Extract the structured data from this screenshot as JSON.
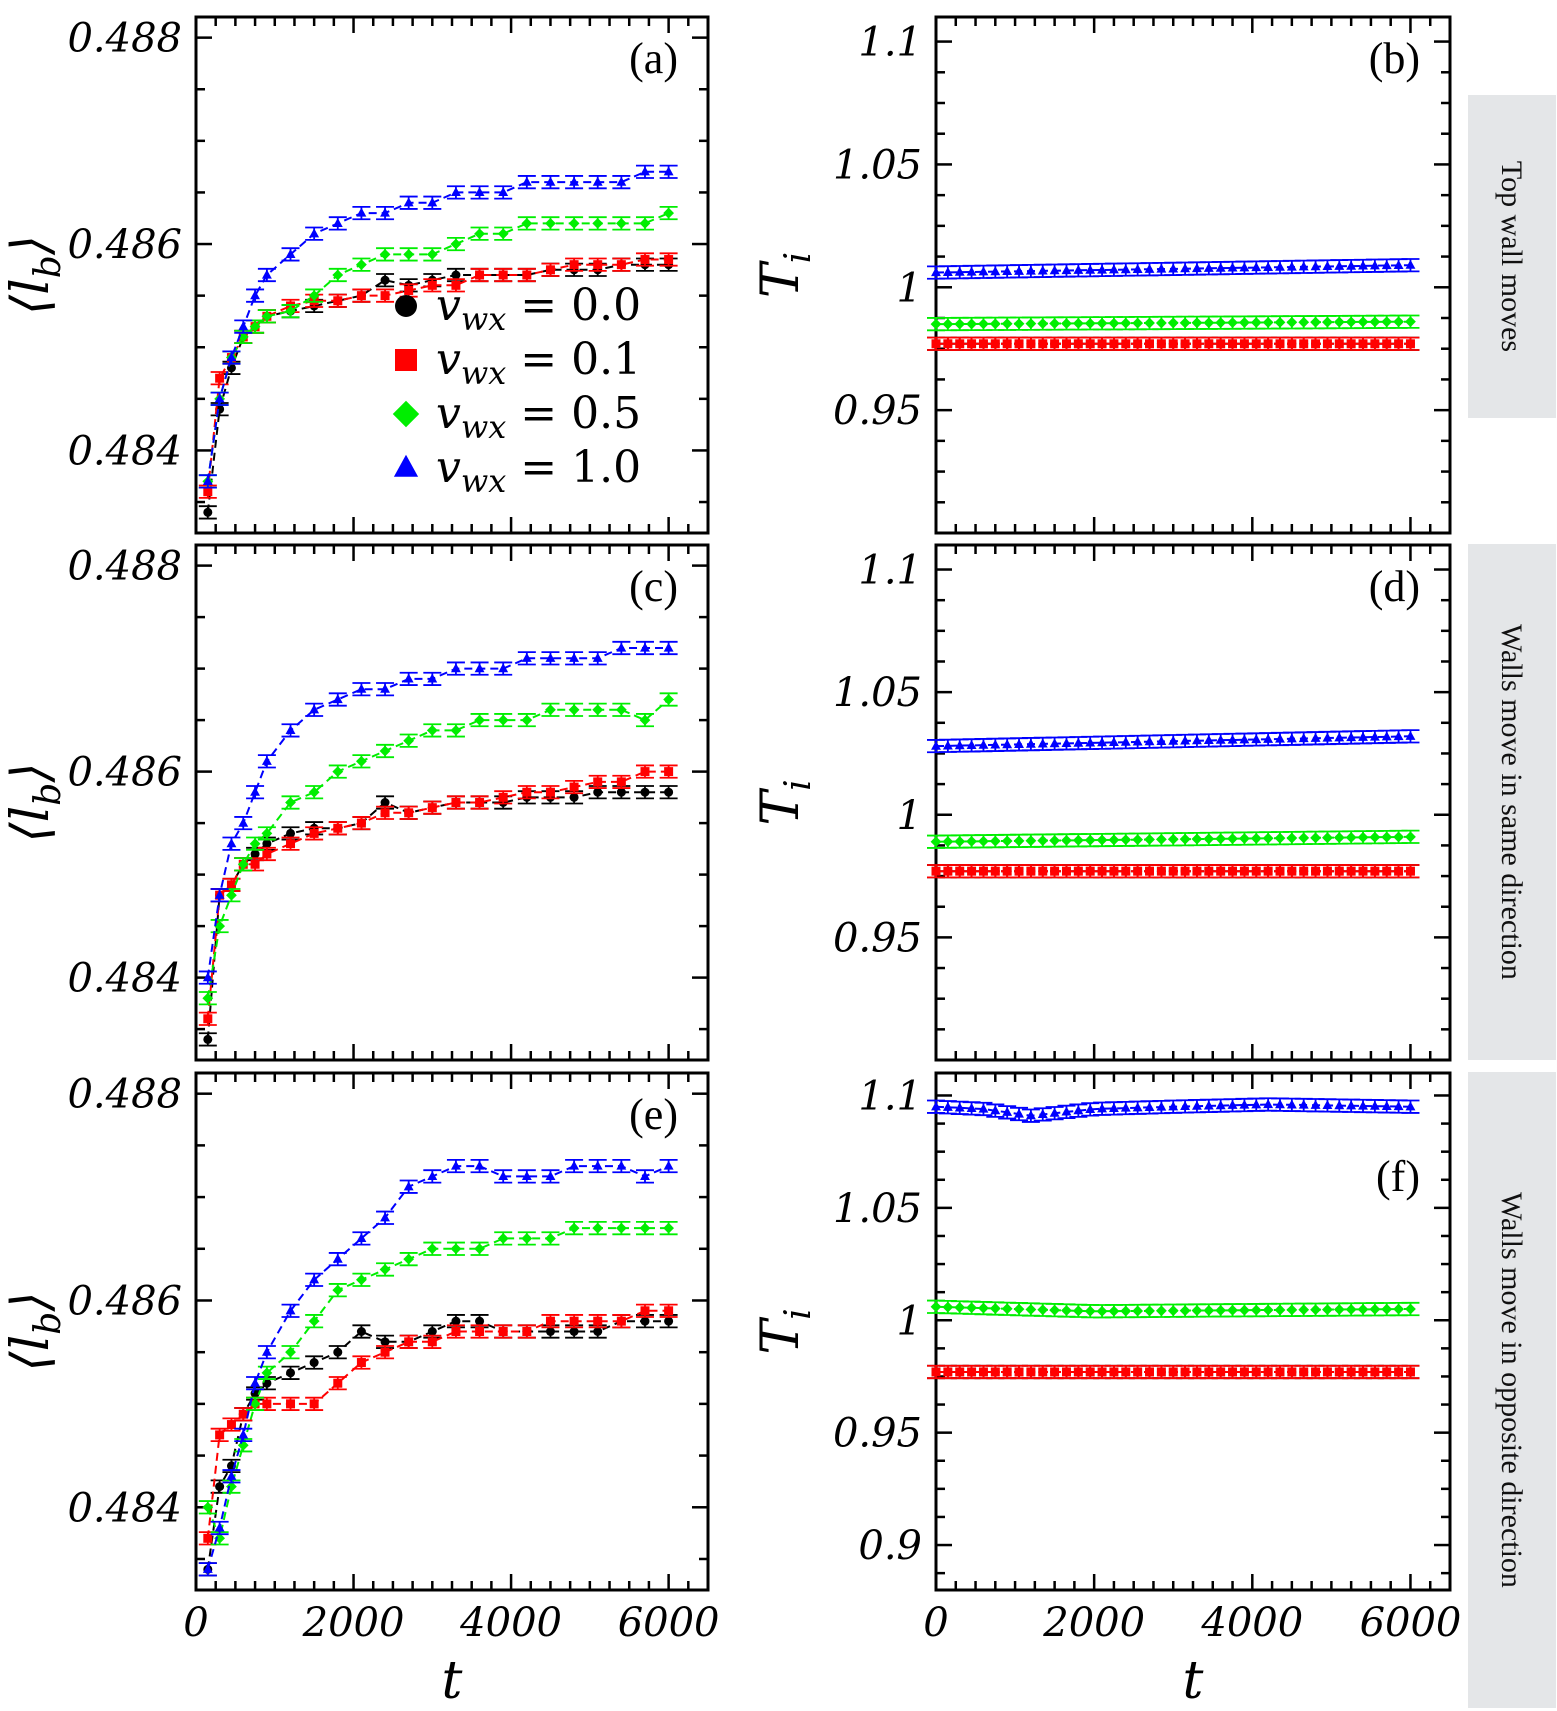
{
  "figure": {
    "row_labels": [
      "Top wall moves",
      "Walls move in same direction",
      "Walls move in opposite direction"
    ],
    "x_axis_label": "t",
    "left_y_label": "⟨l_b⟩",
    "right_y_label": "T_i"
  },
  "legend": {
    "entries": [
      {
        "symbol": "circle",
        "color": "#000000",
        "label": "v_wx = 0.0"
      },
      {
        "symbol": "square",
        "color": "#ff0000",
        "label": "v_wx = 0.1"
      },
      {
        "symbol": "diamond",
        "color": "#00ee00",
        "label": "v_wx = 0.5"
      },
      {
        "symbol": "triangle",
        "color": "#0000ff",
        "label": "v_wx = 1.0"
      }
    ]
  },
  "chart_data": [
    {
      "id": "a",
      "panel_label": "(a)",
      "type": "line",
      "xlim": [
        0,
        6500
      ],
      "ylim": [
        0.4832,
        0.4882
      ],
      "yticks": [
        0.484,
        0.486,
        0.488
      ],
      "ytick_labels": [
        "0.484",
        "0.486",
        "0.488"
      ],
      "xticks": [
        0,
        2000,
        4000,
        6000
      ],
      "xtick_labels": [
        "",
        "",
        "",
        ""
      ],
      "ylabel": "⟨l_b⟩",
      "xlabel": "",
      "legend": true,
      "series": [
        {
          "name": "v_wx = 0.0",
          "color": "#000000",
          "marker": "circle",
          "x": [
            150,
            300,
            450,
            600,
            750,
            900,
            1200,
            1500,
            1800,
            2100,
            2400,
            2700,
            3000,
            3300,
            3600,
            3900,
            4200,
            4500,
            4800,
            5100,
            5400,
            5700,
            6000
          ],
          "y": [
            0.4834,
            0.4844,
            0.4848,
            0.4851,
            0.4852,
            0.4853,
            0.48535,
            0.4854,
            0.48545,
            0.4855,
            0.48565,
            0.4856,
            0.48565,
            0.4857,
            0.4857,
            0.4857,
            0.4857,
            0.48575,
            0.48575,
            0.48575,
            0.4858,
            0.4858,
            0.4858
          ]
        },
        {
          "name": "v_wx = 0.1",
          "color": "#ff0000",
          "marker": "square",
          "x": [
            150,
            300,
            450,
            600,
            750,
            900,
            1200,
            1500,
            1800,
            2100,
            2400,
            2700,
            3000,
            3300,
            3600,
            3900,
            4200,
            4500,
            4800,
            5100,
            5400,
            5700,
            6000
          ],
          "y": [
            0.4836,
            0.4847,
            0.4849,
            0.4851,
            0.4852,
            0.4853,
            0.4854,
            0.48545,
            0.48545,
            0.4855,
            0.4855,
            0.48555,
            0.4856,
            0.4856,
            0.4857,
            0.4857,
            0.4857,
            0.48575,
            0.4858,
            0.4858,
            0.4858,
            0.48585,
            0.48585
          ]
        },
        {
          "name": "v_wx = 0.5",
          "color": "#00ee00",
          "marker": "diamond",
          "x": [
            150,
            300,
            450,
            600,
            750,
            900,
            1200,
            1500,
            1800,
            2100,
            2400,
            2700,
            3000,
            3300,
            3600,
            3900,
            4200,
            4500,
            4800,
            5100,
            5400,
            5700,
            6000
          ],
          "y": [
            0.4837,
            0.4845,
            0.4849,
            0.4851,
            0.4852,
            0.4853,
            0.48535,
            0.4855,
            0.4857,
            0.4858,
            0.4859,
            0.4859,
            0.4859,
            0.486,
            0.4861,
            0.4861,
            0.4862,
            0.4862,
            0.4862,
            0.4862,
            0.4862,
            0.4862,
            0.4863
          ]
        },
        {
          "name": "v_wx = 1.0",
          "color": "#0000ff",
          "marker": "triangle",
          "x": [
            150,
            300,
            450,
            600,
            750,
            900,
            1200,
            1500,
            1800,
            2100,
            2400,
            2700,
            3000,
            3300,
            3600,
            3900,
            4200,
            4500,
            4800,
            5100,
            5400,
            5700,
            6000
          ],
          "y": [
            0.4837,
            0.4845,
            0.4849,
            0.4852,
            0.4855,
            0.4857,
            0.4859,
            0.4861,
            0.4862,
            0.4863,
            0.4863,
            0.4864,
            0.4864,
            0.4865,
            0.4865,
            0.4865,
            0.4866,
            0.4866,
            0.4866,
            0.4866,
            0.4866,
            0.4867,
            0.4867
          ]
        }
      ]
    },
    {
      "id": "b",
      "panel_label": "(b)",
      "type": "line",
      "xlim": [
        0,
        6500
      ],
      "ylim": [
        0.9,
        1.11
      ],
      "yticks": [
        0.95,
        1.0,
        1.05,
        1.1
      ],
      "ytick_labels": [
        "0.95",
        "1",
        "1.05",
        "1.1"
      ],
      "xticks": [
        0,
        2000,
        4000,
        6000
      ],
      "xtick_labels": [
        "",
        "",
        "",
        ""
      ],
      "ylabel": "T_i",
      "xlabel": "",
      "legend": false,
      "series": [
        {
          "name": "v_wx = 0.0",
          "color": "#000000",
          "marker": "circle",
          "x": [
            0,
            6000
          ],
          "y": [
            0.977,
            0.977
          ]
        },
        {
          "name": "v_wx = 0.1",
          "color": "#ff0000",
          "marker": "square",
          "x": [
            0,
            6000
          ],
          "y": [
            0.977,
            0.977
          ]
        },
        {
          "name": "v_wx = 0.5",
          "color": "#00ee00",
          "marker": "diamond",
          "x": [
            0,
            6000
          ],
          "y": [
            0.985,
            0.986
          ]
        },
        {
          "name": "v_wx = 1.0",
          "color": "#0000ff",
          "marker": "triangle",
          "x": [
            0,
            6000
          ],
          "y": [
            1.006,
            1.009
          ]
        }
      ]
    },
    {
      "id": "c",
      "panel_label": "(c)",
      "type": "line",
      "xlim": [
        0,
        6500
      ],
      "ylim": [
        0.4832,
        0.4882
      ],
      "yticks": [
        0.484,
        0.486,
        0.488
      ],
      "ytick_labels": [
        "0.484",
        "0.486",
        "0.488"
      ],
      "xticks": [
        0,
        2000,
        4000,
        6000
      ],
      "xtick_labels": [
        "",
        "",
        "",
        ""
      ],
      "ylabel": "⟨l_b⟩",
      "xlabel": "",
      "legend": false,
      "series": [
        {
          "name": "v_wx = 0.0",
          "color": "#000000",
          "marker": "circle",
          "x": [
            150,
            300,
            450,
            600,
            750,
            900,
            1200,
            1500,
            1800,
            2100,
            2400,
            2700,
            3000,
            3300,
            3600,
            3900,
            4200,
            4500,
            4800,
            5100,
            5400,
            5700,
            6000
          ],
          "y": [
            0.4834,
            0.4848,
            0.4849,
            0.4851,
            0.4852,
            0.4853,
            0.4854,
            0.48545,
            0.48545,
            0.4855,
            0.4857,
            0.4856,
            0.48565,
            0.4857,
            0.4857,
            0.4857,
            0.48575,
            0.48575,
            0.48575,
            0.4858,
            0.4858,
            0.4858,
            0.4858
          ]
        },
        {
          "name": "v_wx = 0.1",
          "color": "#ff0000",
          "marker": "square",
          "x": [
            150,
            300,
            450,
            600,
            750,
            900,
            1200,
            1500,
            1800,
            2100,
            2400,
            2700,
            3000,
            3300,
            3600,
            3900,
            4200,
            4500,
            4800,
            5100,
            5400,
            5700,
            6000
          ],
          "y": [
            0.4836,
            0.4848,
            0.4849,
            0.4851,
            0.4851,
            0.4852,
            0.4853,
            0.4854,
            0.48545,
            0.4855,
            0.4856,
            0.4856,
            0.48565,
            0.4857,
            0.4857,
            0.48575,
            0.4858,
            0.4858,
            0.48585,
            0.4859,
            0.4859,
            0.486,
            0.486
          ]
        },
        {
          "name": "v_wx = 0.5",
          "color": "#00ee00",
          "marker": "diamond",
          "x": [
            150,
            300,
            450,
            600,
            750,
            900,
            1200,
            1500,
            1800,
            2100,
            2400,
            2700,
            3000,
            3300,
            3600,
            3900,
            4200,
            4500,
            4800,
            5100,
            5400,
            5700,
            6000
          ],
          "y": [
            0.4838,
            0.4845,
            0.4848,
            0.4851,
            0.4853,
            0.4854,
            0.4857,
            0.4858,
            0.486,
            0.4861,
            0.4862,
            0.4863,
            0.4864,
            0.4864,
            0.4865,
            0.4865,
            0.4865,
            0.4866,
            0.4866,
            0.4866,
            0.4866,
            0.4865,
            0.4867
          ]
        },
        {
          "name": "v_wx = 1.0",
          "color": "#0000ff",
          "marker": "triangle",
          "x": [
            150,
            300,
            450,
            600,
            750,
            900,
            1200,
            1500,
            1800,
            2100,
            2400,
            2700,
            3000,
            3300,
            3600,
            3900,
            4200,
            4500,
            4800,
            5100,
            5400,
            5700,
            6000
          ],
          "y": [
            0.484,
            0.4848,
            0.4853,
            0.4855,
            0.4858,
            0.4861,
            0.4864,
            0.4866,
            0.4867,
            0.4868,
            0.4868,
            0.4869,
            0.4869,
            0.487,
            0.487,
            0.487,
            0.4871,
            0.4871,
            0.4871,
            0.4871,
            0.4872,
            0.4872,
            0.4872
          ]
        }
      ]
    },
    {
      "id": "d",
      "panel_label": "(d)",
      "type": "line",
      "xlim": [
        0,
        6500
      ],
      "ylim": [
        0.9,
        1.11
      ],
      "yticks": [
        0.95,
        1.0,
        1.05,
        1.1
      ],
      "ytick_labels": [
        "0.95",
        "1",
        "1.05",
        "1.1"
      ],
      "xticks": [
        0,
        2000,
        4000,
        6000
      ],
      "xtick_labels": [
        "",
        "",
        "",
        ""
      ],
      "ylabel": "T_i",
      "xlabel": "",
      "legend": false,
      "series": [
        {
          "name": "v_wx = 0.0",
          "color": "#000000",
          "marker": "circle",
          "x": [
            0,
            6000
          ],
          "y": [
            0.977,
            0.977
          ]
        },
        {
          "name": "v_wx = 0.1",
          "color": "#ff0000",
          "marker": "square",
          "x": [
            0,
            6000
          ],
          "y": [
            0.977,
            0.977
          ]
        },
        {
          "name": "v_wx = 0.5",
          "color": "#00ee00",
          "marker": "diamond",
          "x": [
            0,
            6000
          ],
          "y": [
            0.989,
            0.991
          ]
        },
        {
          "name": "v_wx = 1.0",
          "color": "#0000ff",
          "marker": "triangle",
          "x": [
            0,
            6000
          ],
          "y": [
            1.028,
            1.032
          ]
        }
      ]
    },
    {
      "id": "e",
      "panel_label": "(e)",
      "type": "line",
      "xlim": [
        0,
        6500
      ],
      "ylim": [
        0.4832,
        0.4882
      ],
      "yticks": [
        0.484,
        0.486,
        0.488
      ],
      "ytick_labels": [
        "0.484",
        "0.486",
        "0.488"
      ],
      "xticks": [
        0,
        2000,
        4000,
        6000
      ],
      "xtick_labels": [
        "0",
        "2000",
        "4000",
        "6000"
      ],
      "ylabel": "⟨l_b⟩",
      "xlabel": "t",
      "legend": false,
      "series": [
        {
          "name": "v_wx = 0.0",
          "color": "#000000",
          "marker": "circle",
          "x": [
            150,
            300,
            450,
            600,
            750,
            900,
            1200,
            1500,
            1800,
            2100,
            2400,
            2700,
            3000,
            3300,
            3600,
            3900,
            4200,
            4500,
            4800,
            5100,
            5400,
            5700,
            6000
          ],
          "y": [
            0.4834,
            0.4842,
            0.4844,
            0.4849,
            0.4851,
            0.4852,
            0.4853,
            0.4854,
            0.4855,
            0.4857,
            0.4856,
            0.4856,
            0.4857,
            0.4858,
            0.4858,
            0.4857,
            0.4857,
            0.4857,
            0.4857,
            0.4857,
            0.4858,
            0.4858,
            0.4858
          ]
        },
        {
          "name": "v_wx = 0.1",
          "color": "#ff0000",
          "marker": "square",
          "x": [
            150,
            300,
            450,
            600,
            750,
            900,
            1200,
            1500,
            1800,
            2100,
            2400,
            2700,
            3000,
            3300,
            3600,
            3900,
            4200,
            4500,
            4800,
            5100,
            5400,
            5700,
            6000
          ],
          "y": [
            0.4837,
            0.4847,
            0.4848,
            0.4849,
            0.485,
            0.485,
            0.485,
            0.485,
            0.4852,
            0.4854,
            0.4855,
            0.4856,
            0.4856,
            0.4857,
            0.4857,
            0.4857,
            0.4857,
            0.4858,
            0.4858,
            0.4858,
            0.4858,
            0.4859,
            0.4859
          ]
        },
        {
          "name": "v_wx = 0.5",
          "color": "#00ee00",
          "marker": "diamond",
          "x": [
            150,
            300,
            450,
            600,
            750,
            900,
            1200,
            1500,
            1800,
            2100,
            2400,
            2700,
            3000,
            3300,
            3600,
            3900,
            4200,
            4500,
            4800,
            5100,
            5400,
            5700,
            6000
          ],
          "y": [
            0.484,
            0.4837,
            0.4842,
            0.4846,
            0.485,
            0.4853,
            0.4855,
            0.4858,
            0.4861,
            0.4862,
            0.4863,
            0.4864,
            0.4865,
            0.4865,
            0.4865,
            0.4866,
            0.4866,
            0.4866,
            0.4867,
            0.4867,
            0.4867,
            0.4867,
            0.4867
          ]
        },
        {
          "name": "v_wx = 1.0",
          "color": "#0000ff",
          "marker": "triangle",
          "x": [
            150,
            300,
            450,
            600,
            750,
            900,
            1200,
            1500,
            1800,
            2100,
            2400,
            2700,
            3000,
            3300,
            3600,
            3900,
            4200,
            4500,
            4800,
            5100,
            5400,
            5700,
            6000
          ],
          "y": [
            0.4834,
            0.4838,
            0.4843,
            0.4847,
            0.4852,
            0.4855,
            0.4859,
            0.4862,
            0.4864,
            0.4866,
            0.4868,
            0.4871,
            0.4872,
            0.4873,
            0.4873,
            0.4872,
            0.4872,
            0.4872,
            0.4873,
            0.4873,
            0.4873,
            0.4872,
            0.4873
          ]
        }
      ]
    },
    {
      "id": "f",
      "panel_label": "(f)",
      "type": "line",
      "xlim": [
        0,
        6500
      ],
      "ylim": [
        0.88,
        1.11
      ],
      "yticks": [
        0.9,
        0.95,
        1.0,
        1.05,
        1.1
      ],
      "ytick_labels": [
        "0.9",
        "0.95",
        "1",
        "1.05",
        "1.1"
      ],
      "xticks": [
        0,
        2000,
        4000,
        6000
      ],
      "xtick_labels": [
        "0",
        "2000",
        "4000",
        "6000"
      ],
      "ylabel": "T_i",
      "xlabel": "t",
      "legend": false,
      "series": [
        {
          "name": "v_wx = 0.0",
          "color": "#000000",
          "marker": "circle",
          "x": [
            0,
            6000
          ],
          "y": [
            0.977,
            0.977
          ]
        },
        {
          "name": "v_wx = 0.1",
          "color": "#ff0000",
          "marker": "square",
          "x": [
            0,
            6000
          ],
          "y": [
            0.977,
            0.977
          ]
        },
        {
          "name": "v_wx = 0.5",
          "color": "#00ee00",
          "marker": "diamond",
          "x": [
            0,
            2000,
            6000
          ],
          "y": [
            1.006,
            1.004,
            1.005
          ]
        },
        {
          "name": "v_wx = 1.0",
          "color": "#0000ff",
          "marker": "triangle",
          "x": [
            0,
            600,
            1200,
            2000,
            3000,
            4200,
            6000
          ],
          "y": [
            1.095,
            1.094,
            1.091,
            1.094,
            1.095,
            1.096,
            1.095
          ]
        }
      ]
    }
  ]
}
